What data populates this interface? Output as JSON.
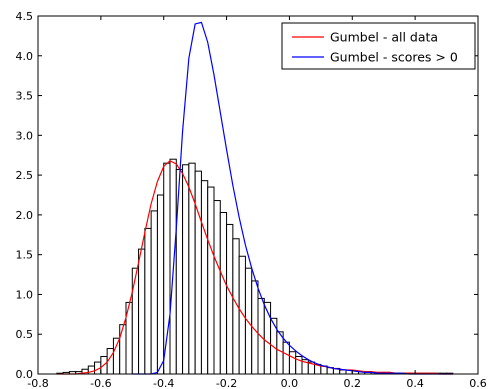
{
  "chart_data": {
    "type": "bar",
    "title": "",
    "xlabel": "",
    "ylabel": "",
    "xlim": [
      -0.8,
      0.6
    ],
    "ylim": [
      0,
      4.5
    ],
    "xticks": [
      -0.8,
      -0.6,
      -0.4,
      -0.2,
      0.0,
      0.2,
      0.4,
      0.6
    ],
    "yticks": [
      0.0,
      0.5,
      1.0,
      1.5,
      2.0,
      2.5,
      3.0,
      3.5,
      4.0,
      4.5
    ],
    "grid": false,
    "legend_position": "top-right",
    "bar_colors": {
      "fill": "#ffffff",
      "edge": "#000000"
    },
    "histogram": {
      "bin_width": 0.02,
      "bin_starts": [
        -0.74,
        -0.72,
        -0.7,
        -0.68,
        -0.66,
        -0.64,
        -0.62,
        -0.6,
        -0.58,
        -0.56,
        -0.54,
        -0.52,
        -0.5,
        -0.48,
        -0.46,
        -0.44,
        -0.42,
        -0.4,
        -0.38,
        -0.36,
        -0.34,
        -0.32,
        -0.3,
        -0.28,
        -0.26,
        -0.24,
        -0.22,
        -0.2,
        -0.18,
        -0.16,
        -0.14,
        -0.12,
        -0.1,
        -0.08,
        -0.06,
        -0.04,
        -0.02,
        0.0,
        0.02,
        0.04,
        0.06,
        0.08,
        0.1,
        0.12,
        0.14,
        0.16,
        0.18,
        0.2,
        0.22,
        0.24,
        0.26,
        0.28,
        0.3,
        0.32,
        0.34,
        0.36,
        0.38,
        0.4,
        0.42,
        0.44,
        0.46,
        0.48,
        0.5
      ],
      "values": [
        0.01,
        0.02,
        0.03,
        0.03,
        0.06,
        0.1,
        0.15,
        0.22,
        0.32,
        0.45,
        0.62,
        0.9,
        1.33,
        1.57,
        1.83,
        2.05,
        2.25,
        2.65,
        2.7,
        2.57,
        2.63,
        2.65,
        2.55,
        2.43,
        2.35,
        2.18,
        2.03,
        1.88,
        1.7,
        1.48,
        1.33,
        1.17,
        0.95,
        0.9,
        0.7,
        0.53,
        0.4,
        0.28,
        0.22,
        0.18,
        0.15,
        0.12,
        0.1,
        0.08,
        0.07,
        0.05,
        0.05,
        0.04,
        0.03,
        0.03,
        0.02,
        0.02,
        0.02,
        0.01,
        0.01,
        0.01,
        0.01,
        0.01,
        0.01,
        0.01,
        0.01,
        0.01,
        0.01
      ]
    },
    "series": [
      {
        "name": "Gumbel - all data",
        "color": "#ff0000",
        "kind": "line",
        "x": [
          -0.74,
          -0.72,
          -0.7,
          -0.68,
          -0.66,
          -0.64,
          -0.62,
          -0.6,
          -0.58,
          -0.56,
          -0.54,
          -0.52,
          -0.5,
          -0.48,
          -0.46,
          -0.44,
          -0.42,
          -0.4,
          -0.38,
          -0.36,
          -0.34,
          -0.32,
          -0.3,
          -0.28,
          -0.26,
          -0.24,
          -0.22,
          -0.2,
          -0.18,
          -0.16,
          -0.14,
          -0.12,
          -0.1,
          -0.08,
          -0.06,
          -0.04,
          -0.02,
          0.0,
          0.02,
          0.04,
          0.06,
          0.08,
          0.1,
          0.12,
          0.14,
          0.16,
          0.18,
          0.2,
          0.22,
          0.24,
          0.26,
          0.28,
          0.3,
          0.32,
          0.34,
          0.36,
          0.38,
          0.4,
          0.42,
          0.44,
          0.46,
          0.48,
          0.5,
          0.52
        ],
        "y": [
          0.0,
          0.0,
          0.0,
          0.0,
          0.01,
          0.02,
          0.04,
          0.08,
          0.15,
          0.27,
          0.45,
          0.71,
          1.03,
          1.4,
          1.78,
          2.14,
          2.42,
          2.61,
          2.68,
          2.64,
          2.52,
          2.35,
          2.14,
          1.91,
          1.69,
          1.48,
          1.29,
          1.11,
          0.96,
          0.82,
          0.7,
          0.6,
          0.51,
          0.43,
          0.37,
          0.31,
          0.27,
          0.23,
          0.19,
          0.16,
          0.14,
          0.12,
          0.1,
          0.09,
          0.07,
          0.06,
          0.05,
          0.05,
          0.04,
          0.03,
          0.03,
          0.02,
          0.02,
          0.02,
          0.01,
          0.01,
          0.01,
          0.01,
          0.01,
          0.01,
          0.01,
          0.0,
          0.0,
          0.0
        ]
      },
      {
        "name": "Gumbel - scores > 0",
        "color": "#0000ff",
        "kind": "line",
        "x": [
          -0.5,
          -0.48,
          -0.46,
          -0.44,
          -0.42,
          -0.4,
          -0.38,
          -0.36,
          -0.34,
          -0.32,
          -0.3,
          -0.28,
          -0.26,
          -0.24,
          -0.22,
          -0.2,
          -0.18,
          -0.16,
          -0.14,
          -0.12,
          -0.1,
          -0.08,
          -0.06,
          -0.04,
          -0.02,
          0.0,
          0.02,
          0.04,
          0.06,
          0.08,
          0.1,
          0.12,
          0.14,
          0.16,
          0.18,
          0.2,
          0.22,
          0.24,
          0.26,
          0.28,
          0.3,
          0.32,
          0.34,
          0.36,
          0.38,
          0.4,
          0.42,
          0.44,
          0.46,
          0.48,
          0.5,
          0.52
        ],
        "y": [
          0.0,
          0.0,
          0.0,
          0.0,
          0.02,
          0.17,
          0.75,
          1.83,
          3.05,
          3.97,
          4.4,
          4.42,
          4.17,
          3.76,
          3.29,
          2.82,
          2.37,
          1.97,
          1.62,
          1.33,
          1.08,
          0.87,
          0.7,
          0.56,
          0.45,
          0.36,
          0.29,
          0.23,
          0.18,
          0.14,
          0.11,
          0.09,
          0.07,
          0.06,
          0.05,
          0.04,
          0.03,
          0.02,
          0.02,
          0.01,
          0.01,
          0.01,
          0.01,
          0.01,
          0.0,
          0.0,
          0.0,
          0.0,
          0.0,
          0.0,
          0.0,
          0.0
        ]
      }
    ]
  }
}
